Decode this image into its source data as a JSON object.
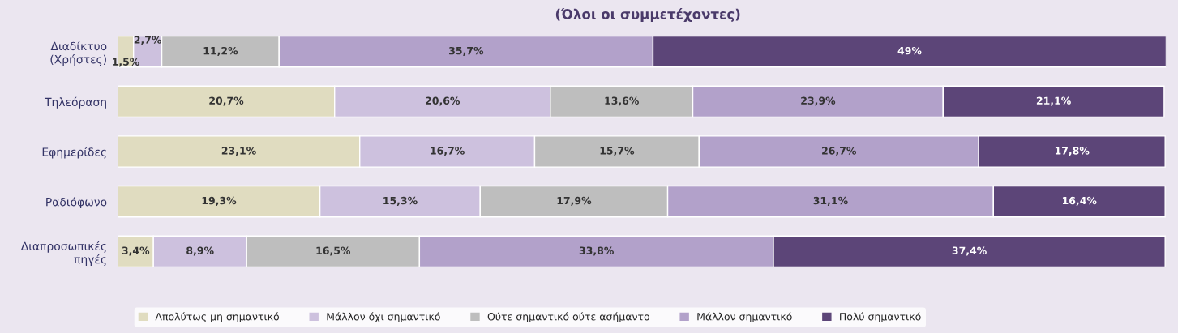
{
  "chart_data": {
    "type": "bar",
    "orientation": "horizontal",
    "stacked": true,
    "title": "(Όλοι οι συμμετέχοντες)",
    "categories": [
      "Διαδίκτυο\n(Χρήστες)",
      "Τηλεόραση",
      "Εφημερίδες",
      "Ραδιόφωνο",
      "Διαπροσωπικές\nπηγές"
    ],
    "series": [
      {
        "name": "Απολύτως μη σημαντικό",
        "color": "#e0dcc0",
        "values": [
          1.5,
          20.7,
          23.1,
          19.3,
          3.4
        ],
        "value_labels": [
          "1,5%",
          "20,7%",
          "23,1%",
          "19,3%",
          "3,4%"
        ]
      },
      {
        "name": "Μάλλον όχι σημαντικό",
        "color": "#cdc1de",
        "values": [
          2.7,
          20.6,
          16.7,
          15.3,
          8.9
        ],
        "value_labels": [
          "2,7%",
          "20,6%",
          "16,7%",
          "15,3%",
          "8,9%"
        ]
      },
      {
        "name": "Ούτε σημαντικό ούτε ασήμαντο",
        "color": "#bebebe",
        "values": [
          11.2,
          13.6,
          15.7,
          17.9,
          16.5
        ],
        "value_labels": [
          "11,2%",
          "13,6%",
          "15,7%",
          "17,9%",
          "16,5%"
        ]
      },
      {
        "name": "Μάλλον σημαντικό",
        "color": "#b2a1ca",
        "values": [
          35.7,
          23.9,
          26.7,
          31.1,
          33.8
        ],
        "value_labels": [
          "35,7%",
          "23,9%",
          "26,7%",
          "31,1%",
          "33,8%"
        ]
      },
      {
        "name": "Πολύ σημαντικό",
        "color": "#5c4578",
        "values": [
          49,
          21.1,
          17.8,
          16.4,
          37.4
        ],
        "value_labels": [
          "49%",
          "21,1%",
          "17,8%",
          "16,4%",
          "37,4%"
        ]
      }
    ],
    "legend": "bottom",
    "grid": false,
    "tick_labels": "y"
  }
}
